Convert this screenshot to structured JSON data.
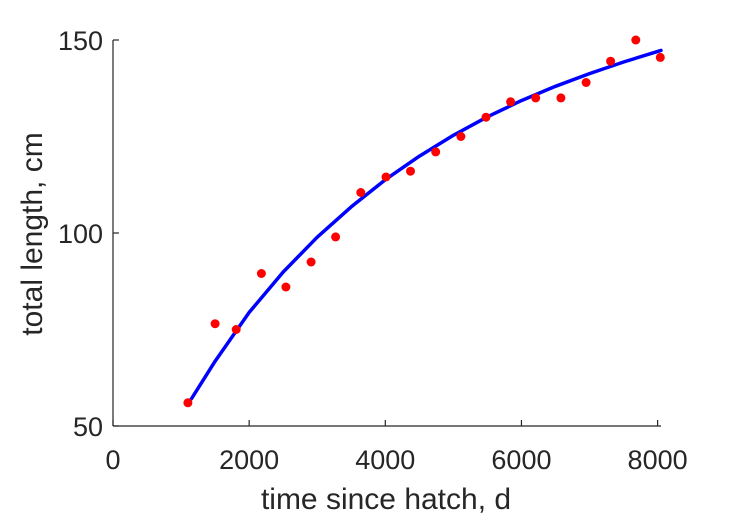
{
  "chart_data": {
    "type": "scatter",
    "xlabel": "time since hatch, d",
    "ylabel": "total length, cm",
    "xlim": [
      0,
      8050
    ],
    "ylim": [
      50,
      150
    ],
    "xticks": [
      0,
      2000,
      4000,
      6000,
      8000
    ],
    "yticks": [
      50,
      100,
      150
    ],
    "grid": false,
    "colors": {
      "points": "#ff0000",
      "fit": "#0000ff",
      "axis": "#262626"
    },
    "series": [
      {
        "kind": "scatter",
        "x": [
          1100,
          1500,
          1810,
          2180,
          2540,
          2910,
          3270,
          3640,
          4010,
          4370,
          4740,
          5110,
          5480,
          5840,
          6210,
          6580,
          6950,
          7310,
          7680,
          8040
        ],
        "y": [
          56,
          76.5,
          75,
          89.5,
          86,
          92.5,
          99,
          110.5,
          114.5,
          116,
          121,
          125,
          130,
          134,
          135,
          135,
          139,
          144.5,
          150,
          145.5
        ]
      },
      {
        "kind": "line",
        "x": [
          1150,
          1500,
          2000,
          2500,
          3000,
          3500,
          4000,
          4500,
          5000,
          5500,
          6000,
          6500,
          7000,
          7500,
          8050
        ],
        "y": [
          57,
          66.8,
          79.4,
          89.9,
          98.9,
          106.8,
          113.8,
          119.9,
          125.3,
          130.1,
          134.3,
          138.0,
          141.3,
          144.3,
          147.3
        ]
      }
    ]
  }
}
